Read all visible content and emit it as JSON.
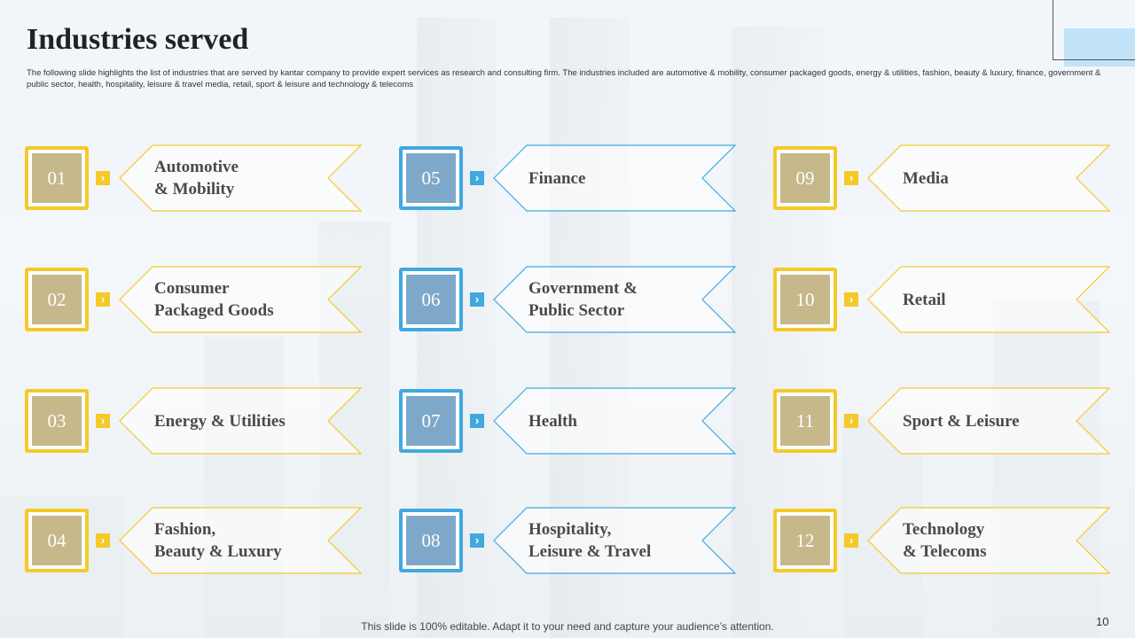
{
  "slide": {
    "title": "Industries served",
    "description": "The following slide highlights the list of industries that are served by kantar company to provide expert services as research and consulting firm. The industries included are automotive & mobility, consumer packaged goods, energy & utilities, fashion, beauty & luxury, finance, government & public sector, health, hospitality, leisure & travel media, retail, sport & leisure and technology & telecoms",
    "footer": "This slide is 100% editable. Adapt it to your need and capture your audience’s attention.",
    "page_number": "10",
    "colors": {
      "yellow": "#f5c928",
      "blue": "#3fa9e0",
      "tan": "#c6b88a",
      "steel": "#7ea8c9"
    }
  },
  "industries": [
    {
      "number": "01",
      "label": "Automotive\n& Mobility",
      "theme": "yellow"
    },
    {
      "number": "02",
      "label": "Consumer\nPackaged Goods",
      "theme": "yellow"
    },
    {
      "number": "03",
      "label": "Energy & Utilities",
      "theme": "yellow"
    },
    {
      "number": "04",
      "label": "Fashion,\nBeauty & Luxury",
      "theme": "yellow"
    },
    {
      "number": "05",
      "label": "Finance",
      "theme": "blue"
    },
    {
      "number": "06",
      "label": "Government &\nPublic Sector",
      "theme": "blue"
    },
    {
      "number": "07",
      "label": "Health",
      "theme": "blue"
    },
    {
      "number": "08",
      "label": "Hospitality,\nLeisure & Travel",
      "theme": "blue"
    },
    {
      "number": "09",
      "label": "Media",
      "theme": "yellow"
    },
    {
      "number": "10",
      "label": "Retail",
      "theme": "yellow"
    },
    {
      "number": "11",
      "label": "Sport & Leisure",
      "theme": "yellow"
    },
    {
      "number": "12",
      "label": "Technology\n& Telecoms",
      "theme": "yellow"
    }
  ],
  "icons": {
    "arrow": "chevron-right-icon"
  }
}
